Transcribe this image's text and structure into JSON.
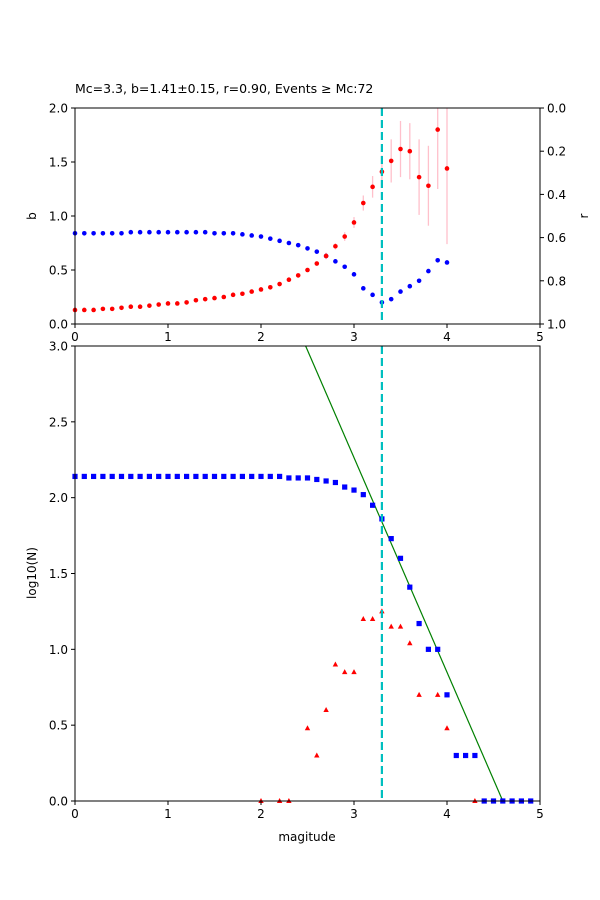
{
  "chart_data": [
    {
      "type": "scatter",
      "title": "Mc=3.3, b=1.41±0.15, r=0.90, Events ≥ Mc:72",
      "xlabel": "",
      "ylabel": "b",
      "y2label": "r",
      "xlim": [
        0,
        5
      ],
      "ylim": [
        0,
        2.0
      ],
      "y2lim_inverted": [
        1.0,
        0.0
      ],
      "xticks": [
        "0",
        "1",
        "2",
        "3",
        "4",
        "5"
      ],
      "yticks": [
        "0.0",
        "0.5",
        "1.0",
        "1.5",
        "2.0"
      ],
      "y2ticks": [
        "0.0",
        "0.2",
        "0.4",
        "0.6",
        "0.8",
        "1.0"
      ],
      "mc_line_x": 3.3,
      "colors": {
        "b_points": "#ff0000",
        "r_points": "#0000ff",
        "errorbars": "#ffc0cb",
        "mc_line": "#00bfbf"
      },
      "b_series": {
        "x": [
          0.0,
          0.1,
          0.2,
          0.3,
          0.4,
          0.5,
          0.6,
          0.7,
          0.8,
          0.9,
          1.0,
          1.1,
          1.2,
          1.3,
          1.4,
          1.5,
          1.6,
          1.7,
          1.8,
          1.9,
          2.0,
          2.1,
          2.2,
          2.3,
          2.4,
          2.5,
          2.6,
          2.7,
          2.8,
          2.9,
          3.0,
          3.1,
          3.2,
          3.3,
          3.4,
          3.5,
          3.6,
          3.7,
          3.8,
          3.9,
          4.0
        ],
        "y": [
          0.13,
          0.13,
          0.13,
          0.14,
          0.14,
          0.15,
          0.16,
          0.16,
          0.17,
          0.18,
          0.19,
          0.19,
          0.2,
          0.22,
          0.23,
          0.24,
          0.25,
          0.27,
          0.28,
          0.3,
          0.32,
          0.34,
          0.37,
          0.41,
          0.45,
          0.5,
          0.56,
          0.63,
          0.72,
          0.81,
          0.94,
          1.12,
          1.27,
          1.41,
          1.51,
          1.62,
          1.6,
          1.36,
          1.28,
          1.8,
          1.44
        ],
        "err": [
          0,
          0,
          0,
          0,
          0,
          0,
          0,
          0,
          0,
          0,
          0,
          0,
          0,
          0,
          0,
          0,
          0,
          0,
          0,
          0,
          0,
          0,
          0,
          0,
          0,
          0.02,
          0.02,
          0.03,
          0.03,
          0.04,
          0.05,
          0.07,
          0.1,
          0.15,
          0.2,
          0.26,
          0.26,
          0.35,
          0.37,
          0.55,
          0.7
        ]
      },
      "r_series": {
        "x": [
          0.0,
          0.1,
          0.2,
          0.3,
          0.4,
          0.5,
          0.6,
          0.7,
          0.8,
          0.9,
          1.0,
          1.1,
          1.2,
          1.3,
          1.4,
          1.5,
          1.6,
          1.7,
          1.8,
          1.9,
          2.0,
          2.1,
          2.2,
          2.3,
          2.4,
          2.5,
          2.6,
          2.7,
          2.8,
          2.9,
          3.0,
          3.1,
          3.2,
          3.3,
          3.4,
          3.5,
          3.6,
          3.7,
          3.8,
          3.9,
          4.0
        ],
        "y": [
          0.58,
          0.58,
          0.58,
          0.58,
          0.58,
          0.58,
          0.575,
          0.575,
          0.575,
          0.575,
          0.575,
          0.575,
          0.575,
          0.575,
          0.575,
          0.58,
          0.58,
          0.58,
          0.585,
          0.59,
          0.595,
          0.605,
          0.615,
          0.625,
          0.635,
          0.65,
          0.665,
          0.685,
          0.71,
          0.735,
          0.77,
          0.835,
          0.865,
          0.9,
          0.885,
          0.85,
          0.825,
          0.8,
          0.755,
          0.705,
          0.715
        ]
      }
    },
    {
      "type": "scatter",
      "title": "",
      "xlabel": "magitude",
      "ylabel": "log10(N)",
      "xlim": [
        0,
        5
      ],
      "ylim": [
        0,
        3.0
      ],
      "xticks": [
        "0",
        "1",
        "2",
        "3",
        "4",
        "5"
      ],
      "yticks": [
        "0.0",
        "0.5",
        "1.0",
        "1.5",
        "2.0",
        "2.5",
        "3.0"
      ],
      "mc_line_x": 3.3,
      "colors": {
        "cumulative": "#0000ff",
        "noncumulative": "#ff0000",
        "fit_line": "#008000",
        "mc_line": "#00bfbf"
      },
      "cumulative": {
        "x": [
          0.0,
          0.1,
          0.2,
          0.3,
          0.4,
          0.5,
          0.6,
          0.7,
          0.8,
          0.9,
          1.0,
          1.1,
          1.2,
          1.3,
          1.4,
          1.5,
          1.6,
          1.7,
          1.8,
          1.9,
          2.0,
          2.1,
          2.2,
          2.3,
          2.4,
          2.5,
          2.6,
          2.7,
          2.8,
          2.9,
          3.0,
          3.1,
          3.2,
          3.3,
          3.4,
          3.5,
          3.6,
          3.7,
          3.8,
          3.9,
          4.0,
          4.1,
          4.2,
          4.3,
          4.4,
          4.5,
          4.6,
          4.7,
          4.8,
          4.9
        ],
        "y": [
          2.14,
          2.14,
          2.14,
          2.14,
          2.14,
          2.14,
          2.14,
          2.14,
          2.14,
          2.14,
          2.14,
          2.14,
          2.14,
          2.14,
          2.14,
          2.14,
          2.14,
          2.14,
          2.14,
          2.14,
          2.14,
          2.14,
          2.14,
          2.13,
          2.13,
          2.13,
          2.12,
          2.11,
          2.1,
          2.07,
          2.05,
          2.02,
          1.95,
          1.86,
          1.73,
          1.6,
          1.41,
          1.17,
          1.0,
          1.0,
          0.7,
          0.3,
          0.3,
          0.3,
          0.0,
          0.0,
          0.0,
          0.0,
          0.0,
          0.0
        ]
      },
      "noncumulative": {
        "x": [
          2.0,
          2.2,
          2.3,
          2.5,
          2.6,
          2.7,
          2.8,
          2.9,
          3.0,
          3.1,
          3.2,
          3.3,
          3.4,
          3.5,
          3.6,
          3.7,
          3.9,
          4.0,
          4.3
        ],
        "y": [
          0.0,
          0.0,
          0.0,
          0.48,
          0.3,
          0.6,
          0.9,
          0.85,
          0.85,
          1.2,
          1.2,
          1.25,
          1.15,
          1.15,
          1.04,
          0.7,
          0.7,
          0.48,
          0.0
        ]
      },
      "fit_line": {
        "x": [
          2.48,
          4.6
        ],
        "y": [
          3.0,
          0.0
        ]
      }
    }
  ]
}
